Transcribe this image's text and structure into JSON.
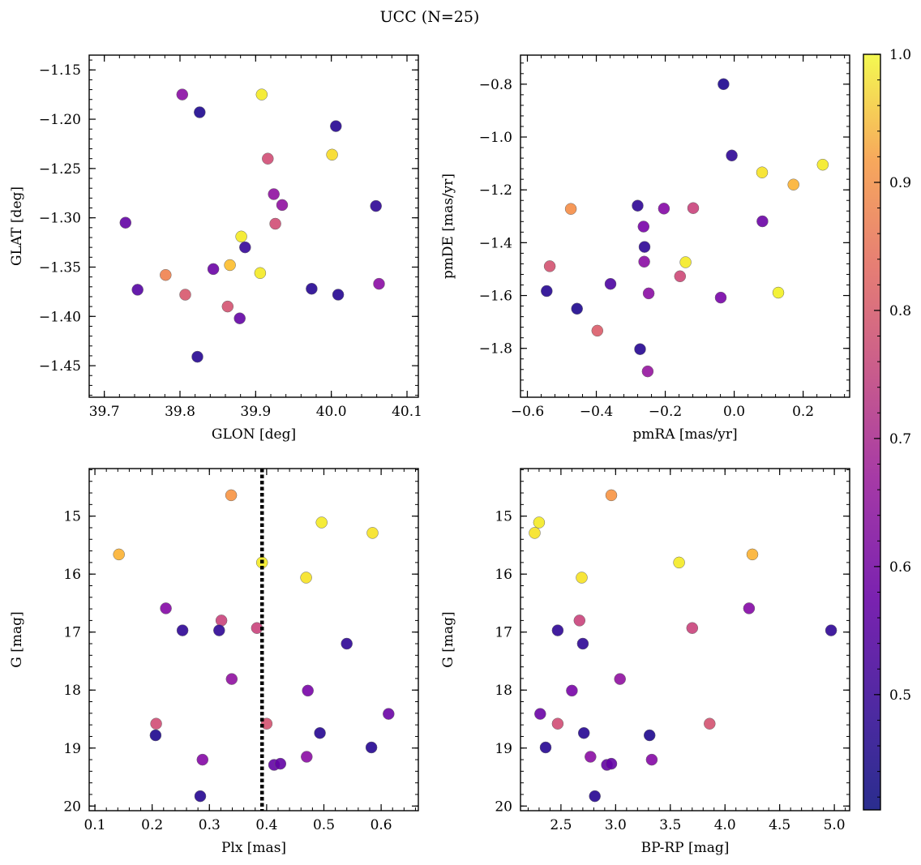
{
  "figure": {
    "title": "UCC (N=25)",
    "colorbar": {
      "colormap": "plasma",
      "range": [
        0.41,
        1.0
      ],
      "ticks": [
        0.5,
        0.6,
        0.7,
        0.8,
        0.9,
        1.0
      ],
      "tick_labels": [
        "0.5",
        "0.6",
        "0.7",
        "0.8",
        "0.9",
        "1.0"
      ]
    }
  },
  "chart_data": [
    {
      "type": "scatter",
      "xlabel": "GLON [deg]",
      "ylabel": "GLAT [deg]",
      "xlim": [
        39.68,
        40.115
      ],
      "ylim": [
        -1.482,
        -1.135
      ],
      "xticks": [
        39.7,
        39.8,
        39.9,
        40.0,
        40.1
      ],
      "xtick_labels": [
        "39.7",
        "39.8",
        "39.9",
        "40.0",
        "40.1"
      ],
      "yticks": [
        -1.45,
        -1.4,
        -1.35,
        -1.3,
        -1.25,
        -1.2,
        -1.15
      ],
      "ytick_labels": [
        "−1.45",
        "−1.40",
        "−1.35",
        "−1.30",
        "−1.25",
        "−1.20",
        "−1.15"
      ],
      "points": [
        {
          "x": 39.803,
          "y": -1.175,
          "c": 0.58
        },
        {
          "x": 39.826,
          "y": -1.193,
          "c": 0.43
        },
        {
          "x": 39.908,
          "y": -1.175,
          "c": 0.98
        },
        {
          "x": 40.006,
          "y": -1.207,
          "c": 0.44
        },
        {
          "x": 39.916,
          "y": -1.24,
          "c": 0.72
        },
        {
          "x": 40.001,
          "y": -1.236,
          "c": 0.96
        },
        {
          "x": 39.924,
          "y": -1.276,
          "c": 0.59
        },
        {
          "x": 39.935,
          "y": -1.287,
          "c": 0.59
        },
        {
          "x": 40.059,
          "y": -1.288,
          "c": 0.45
        },
        {
          "x": 39.728,
          "y": -1.305,
          "c": 0.52
        },
        {
          "x": 39.926,
          "y": -1.306,
          "c": 0.72
        },
        {
          "x": 39.881,
          "y": -1.319,
          "c": 0.98
        },
        {
          "x": 39.886,
          "y": -1.33,
          "c": 0.46
        },
        {
          "x": 39.866,
          "y": -1.348,
          "c": 0.92
        },
        {
          "x": 39.844,
          "y": -1.352,
          "c": 0.53
        },
        {
          "x": 39.906,
          "y": -1.356,
          "c": 0.98
        },
        {
          "x": 39.781,
          "y": -1.358,
          "c": 0.82
        },
        {
          "x": 40.063,
          "y": -1.367,
          "c": 0.58
        },
        {
          "x": 39.744,
          "y": -1.373,
          "c": 0.5
        },
        {
          "x": 39.974,
          "y": -1.372,
          "c": 0.44
        },
        {
          "x": 39.807,
          "y": -1.378,
          "c": 0.74
        },
        {
          "x": 40.009,
          "y": -1.378,
          "c": 0.44
        },
        {
          "x": 39.863,
          "y": -1.39,
          "c": 0.73
        },
        {
          "x": 39.879,
          "y": -1.402,
          "c": 0.52
        },
        {
          "x": 39.823,
          "y": -1.441,
          "c": 0.44
        }
      ]
    },
    {
      "type": "scatter",
      "xlabel": "pmRA [mas/yr]",
      "ylabel": "pmDE [mas/yr]",
      "xlim": [
        -0.62,
        0.335
      ],
      "ylim": [
        -1.985,
        -0.69
      ],
      "xticks": [
        -0.6,
        -0.4,
        -0.2,
        0.0,
        0.2
      ],
      "xtick_labels": [
        "−0.6",
        "−0.4",
        "−0.2",
        "0.0",
        "0.2"
      ],
      "yticks": [
        -1.8,
        -1.6,
        -1.4,
        -1.2,
        -1.0,
        -0.8
      ],
      "ytick_labels": [
        "−1.8",
        "−1.6",
        "−1.4",
        "−1.2",
        "−1.0",
        "−0.8"
      ],
      "points": [
        {
          "x": -0.031,
          "y": -0.8,
          "c": 0.43
        },
        {
          "x": -0.007,
          "y": -1.07,
          "c": 0.45
        },
        {
          "x": 0.257,
          "y": -1.105,
          "c": 0.98
        },
        {
          "x": 0.081,
          "y": -1.134,
          "c": 0.97
        },
        {
          "x": 0.172,
          "y": -1.18,
          "c": 0.9
        },
        {
          "x": -0.28,
          "y": -1.26,
          "c": 0.45
        },
        {
          "x": -0.474,
          "y": -1.272,
          "c": 0.84
        },
        {
          "x": -0.204,
          "y": -1.271,
          "c": 0.57
        },
        {
          "x": -0.119,
          "y": -1.269,
          "c": 0.7
        },
        {
          "x": 0.082,
          "y": -1.319,
          "c": 0.53
        },
        {
          "x": -0.263,
          "y": -1.339,
          "c": 0.55
        },
        {
          "x": -0.26,
          "y": -1.416,
          "c": 0.45
        },
        {
          "x": -0.141,
          "y": -1.474,
          "c": 0.98
        },
        {
          "x": -0.261,
          "y": -1.472,
          "c": 0.58
        },
        {
          "x": -0.535,
          "y": -1.489,
          "c": 0.73
        },
        {
          "x": -0.157,
          "y": -1.527,
          "c": 0.71
        },
        {
          "x": -0.359,
          "y": -1.556,
          "c": 0.49
        },
        {
          "x": -0.544,
          "y": -1.583,
          "c": 0.44
        },
        {
          "x": 0.128,
          "y": -1.589,
          "c": 0.99
        },
        {
          "x": -0.248,
          "y": -1.592,
          "c": 0.58
        },
        {
          "x": -0.039,
          "y": -1.608,
          "c": 0.55
        },
        {
          "x": -0.456,
          "y": -1.65,
          "c": 0.43
        },
        {
          "x": -0.397,
          "y": -1.733,
          "c": 0.75
        },
        {
          "x": -0.273,
          "y": -1.803,
          "c": 0.44
        },
        {
          "x": -0.251,
          "y": -1.887,
          "c": 0.6
        }
      ]
    },
    {
      "type": "scatter",
      "xlabel": "Plx [mas]",
      "ylabel": "G [mag]",
      "xlim": [
        0.09,
        0.665
      ],
      "ylim": [
        20.08,
        14.18
      ],
      "xticks": [
        0.1,
        0.2,
        0.3,
        0.4,
        0.5,
        0.6
      ],
      "xtick_labels": [
        "0.1",
        "0.2",
        "0.3",
        "0.4",
        "0.5",
        "0.6"
      ],
      "yticks": [
        15,
        16,
        17,
        18,
        19,
        20
      ],
      "ytick_labels": [
        "15",
        "16",
        "17",
        "18",
        "19",
        "20"
      ],
      "vline": 0.392,
      "points": [
        {
          "x": 0.338,
          "y": 14.64,
          "c": 0.85
        },
        {
          "x": 0.496,
          "y": 15.11,
          "c": 0.98
        },
        {
          "x": 0.585,
          "y": 15.29,
          "c": 0.97
        },
        {
          "x": 0.142,
          "y": 15.66,
          "c": 0.9
        },
        {
          "x": 0.392,
          "y": 15.8,
          "c": 0.98
        },
        {
          "x": 0.469,
          "y": 16.06,
          "c": 0.97
        },
        {
          "x": 0.224,
          "y": 16.59,
          "c": 0.57
        },
        {
          "x": 0.321,
          "y": 16.8,
          "c": 0.7
        },
        {
          "x": 0.383,
          "y": 16.93,
          "c": 0.7
        },
        {
          "x": 0.253,
          "y": 16.97,
          "c": 0.45
        },
        {
          "x": 0.317,
          "y": 16.97,
          "c": 0.45
        },
        {
          "x": 0.54,
          "y": 17.2,
          "c": 0.45
        },
        {
          "x": 0.339,
          "y": 17.81,
          "c": 0.59
        },
        {
          "x": 0.472,
          "y": 18.01,
          "c": 0.55
        },
        {
          "x": 0.207,
          "y": 18.58,
          "c": 0.72
        },
        {
          "x": 0.4,
          "y": 18.58,
          "c": 0.73
        },
        {
          "x": 0.613,
          "y": 18.41,
          "c": 0.53
        },
        {
          "x": 0.206,
          "y": 18.78,
          "c": 0.43
        },
        {
          "x": 0.493,
          "y": 18.74,
          "c": 0.44
        },
        {
          "x": 0.583,
          "y": 18.99,
          "c": 0.44
        },
        {
          "x": 0.47,
          "y": 19.15,
          "c": 0.58
        },
        {
          "x": 0.288,
          "y": 19.2,
          "c": 0.57
        },
        {
          "x": 0.413,
          "y": 19.29,
          "c": 0.52
        },
        {
          "x": 0.424,
          "y": 19.27,
          "c": 0.52
        },
        {
          "x": 0.284,
          "y": 19.83,
          "c": 0.44
        }
      ]
    },
    {
      "type": "scatter",
      "xlabel": "BP-RP [mag]",
      "ylabel": "G [mag]",
      "xlim": [
        2.13,
        5.14
      ],
      "ylim": [
        20.08,
        14.18
      ],
      "xticks": [
        2.5,
        3.0,
        3.5,
        4.0,
        4.5,
        5.0
      ],
      "xtick_labels": [
        "2.5",
        "3.0",
        "3.5",
        "4.0",
        "4.5",
        "5.0"
      ],
      "yticks": [
        15,
        16,
        17,
        18,
        19,
        20
      ],
      "ytick_labels": [
        "15",
        "16",
        "17",
        "18",
        "19",
        "20"
      ],
      "points": [
        {
          "x": 2.96,
          "y": 14.64,
          "c": 0.85
        },
        {
          "x": 2.3,
          "y": 15.11,
          "c": 0.98
        },
        {
          "x": 2.26,
          "y": 15.29,
          "c": 0.97
        },
        {
          "x": 4.25,
          "y": 15.66,
          "c": 0.9
        },
        {
          "x": 3.58,
          "y": 15.8,
          "c": 0.98
        },
        {
          "x": 2.69,
          "y": 16.06,
          "c": 0.97
        },
        {
          "x": 4.22,
          "y": 16.59,
          "c": 0.57
        },
        {
          "x": 2.67,
          "y": 16.8,
          "c": 0.7
        },
        {
          "x": 3.7,
          "y": 16.93,
          "c": 0.7
        },
        {
          "x": 2.47,
          "y": 16.97,
          "c": 0.45
        },
        {
          "x": 4.97,
          "y": 16.97,
          "c": 0.45
        },
        {
          "x": 2.7,
          "y": 17.2,
          "c": 0.45
        },
        {
          "x": 3.04,
          "y": 17.81,
          "c": 0.59
        },
        {
          "x": 2.6,
          "y": 18.01,
          "c": 0.55
        },
        {
          "x": 2.31,
          "y": 18.41,
          "c": 0.53
        },
        {
          "x": 2.47,
          "y": 18.58,
          "c": 0.72
        },
        {
          "x": 3.86,
          "y": 18.58,
          "c": 0.73
        },
        {
          "x": 2.71,
          "y": 18.74,
          "c": 0.44
        },
        {
          "x": 3.31,
          "y": 18.78,
          "c": 0.43
        },
        {
          "x": 2.36,
          "y": 18.99,
          "c": 0.44
        },
        {
          "x": 2.77,
          "y": 19.15,
          "c": 0.58
        },
        {
          "x": 3.33,
          "y": 19.2,
          "c": 0.57
        },
        {
          "x": 2.92,
          "y": 19.29,
          "c": 0.52
        },
        {
          "x": 2.96,
          "y": 19.27,
          "c": 0.52
        },
        {
          "x": 2.81,
          "y": 19.83,
          "c": 0.44
        }
      ]
    }
  ]
}
